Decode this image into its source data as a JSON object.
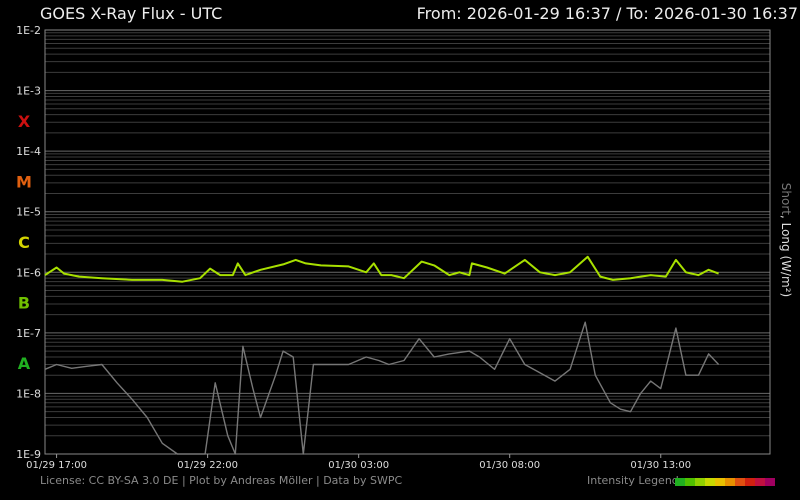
{
  "header": {
    "title": "GOES X-Ray Flux - UTC",
    "range": "From: 2026-01-29 16:37  /  To: 2026-01-30 16:37"
  },
  "footer": {
    "credit": "License: CC BY-SA 3.0 DE | Plot by Andreas Möller | Data by SWPC",
    "legend_label": "Intensity Legend"
  },
  "axis": {
    "ylabel_short": "Short",
    "ylabel_rest": ", Long (W/m²)"
  },
  "colors": {
    "background": "#000000",
    "grid": "#5a5a5a",
    "long_series": "#a8e000",
    "short_series": "#777777",
    "class_X": "#cc1010",
    "class_M": "#e06010",
    "class_C": "#d4d400",
    "class_B": "#70c000",
    "class_A": "#20b020"
  },
  "intensity_legend_colors": [
    "#20b020",
    "#50c000",
    "#90d000",
    "#c8d800",
    "#e8c000",
    "#e89000",
    "#e05010",
    "#d02010",
    "#c01040",
    "#a00060"
  ],
  "chart_data": {
    "type": "line",
    "title": "GOES X-Ray Flux - UTC",
    "ylabel": "Short, Long (W/m²)",
    "y_scale": "log",
    "ylim": [
      "1E-9",
      "1E-2"
    ],
    "y_ticks": [
      "1E-2",
      "1E-3",
      "1E-4",
      "1E-5",
      "1E-6",
      "1E-7",
      "1E-8",
      "1E-9"
    ],
    "flare_classes": [
      "X",
      "M",
      "C",
      "B",
      "A"
    ],
    "x_range": [
      "2026-01-29 16:37",
      "2026-01-30 16:37"
    ],
    "x_ticks": [
      "01/29 17:00",
      "01/29 22:00",
      "01/30 03:00",
      "01/30 08:00",
      "01/30 13:00"
    ],
    "grid": true,
    "series": [
      {
        "name": "Long",
        "color": "#a8e000",
        "x": [
          "2026-01-29 16:37",
          "2026-01-29 17:00",
          "2026-01-29 17:15",
          "2026-01-29 17:45",
          "2026-01-29 18:30",
          "2026-01-29 19:30",
          "2026-01-29 20:30",
          "2026-01-29 21:10",
          "2026-01-29 21:45",
          "2026-01-29 22:05",
          "2026-01-29 22:25",
          "2026-01-29 22:50",
          "2026-01-29 23:00",
          "2026-01-29 23:15",
          "2026-01-29 23:45",
          "2026-01-30 00:30",
          "2026-01-30 00:55",
          "2026-01-30 01:15",
          "2026-01-30 01:45",
          "2026-01-30 02:40",
          "2026-01-30 03:15",
          "2026-01-30 03:30",
          "2026-01-30 03:45",
          "2026-01-30 04:05",
          "2026-01-30 04:30",
          "2026-01-30 05:05",
          "2026-01-30 05:30",
          "2026-01-30 06:00",
          "2026-01-30 06:20",
          "2026-01-30 06:40",
          "2026-01-30 06:45",
          "2026-01-30 07:15",
          "2026-01-30 07:50",
          "2026-01-30 08:30",
          "2026-01-30 09:00",
          "2026-01-30 09:30",
          "2026-01-30 10:00",
          "2026-01-30 10:35",
          "2026-01-30 11:00",
          "2026-01-30 11:25",
          "2026-01-30 12:00",
          "2026-01-30 12:40",
          "2026-01-30 13:10",
          "2026-01-30 13:30",
          "2026-01-30 13:50",
          "2026-01-30 14:15",
          "2026-01-30 14:35",
          "2026-01-30 14:55"
        ],
        "y": [
          "9.0E-7",
          "1.2E-6",
          "9.5E-7",
          "8.5E-7",
          "8.0E-7",
          "7.5E-7",
          "7.5E-7",
          "7.0E-7",
          "8.0E-7",
          "1.15E-6",
          "9.0E-7",
          "9.0E-7",
          "1.4E-6",
          "9.0E-7",
          "1.1E-6",
          "1.35E-6",
          "1.6E-6",
          "1.4E-6",
          "1.3E-6",
          "1.25E-6",
          "1.0E-6",
          "1.4E-6",
          "9.0E-7",
          "9.0E-7",
          "8.0E-7",
          "1.5E-6",
          "1.3E-6",
          "9.0E-7",
          "1.0E-6",
          "9.0E-7",
          "1.4E-6",
          "1.2E-6",
          "9.5E-7",
          "1.6E-6",
          "1.0E-6",
          "9.0E-7",
          "1.0E-6",
          "1.8E-6",
          "8.5E-7",
          "7.5E-7",
          "8.0E-7",
          "9.0E-7",
          "8.5E-7",
          "1.6E-6",
          "1.0E-6",
          "9.0E-7",
          "1.1E-6",
          "9.5E-7"
        ]
      },
      {
        "name": "Short",
        "color": "#777777",
        "x": [
          "2026-01-29 16:37",
          "2026-01-29 17:00",
          "2026-01-29 17:30",
          "2026-01-29 18:00",
          "2026-01-29 18:30",
          "2026-01-29 19:00",
          "2026-01-29 19:30",
          "2026-01-29 20:00",
          "2026-01-29 20:30",
          "2026-01-29 21:00",
          "2026-01-29 21:30",
          "2026-01-29 21:55",
          "2026-01-29 22:15",
          "2026-01-29 22:40",
          "2026-01-29 22:55",
          "2026-01-29 23:10",
          "2026-01-29 23:30",
          "2026-01-29 23:45",
          "2026-01-30 00:15",
          "2026-01-30 00:30",
          "2026-01-30 00:50",
          "2026-01-30 01:10",
          "2026-01-30 01:30",
          "2026-01-30 02:00",
          "2026-01-30 02:40",
          "2026-01-30 03:15",
          "2026-01-30 03:40",
          "2026-01-30 04:00",
          "2026-01-30 04:30",
          "2026-01-30 05:00",
          "2026-01-30 05:30",
          "2026-01-30 06:00",
          "2026-01-30 06:40",
          "2026-01-30 07:00",
          "2026-01-30 07:30",
          "2026-01-30 08:00",
          "2026-01-30 08:30",
          "2026-01-30 09:00",
          "2026-01-30 09:30",
          "2026-01-30 10:00",
          "2026-01-30 10:30",
          "2026-01-30 10:50",
          "2026-01-30 11:20",
          "2026-01-30 11:40",
          "2026-01-30 12:00",
          "2026-01-30 12:20",
          "2026-01-30 12:40",
          "2026-01-30 13:00",
          "2026-01-30 13:30",
          "2026-01-30 13:50",
          "2026-01-30 14:15",
          "2026-01-30 14:35",
          "2026-01-30 14:55"
        ],
        "y": [
          "2.5E-8",
          "3.0E-8",
          "2.6E-8",
          "2.8E-8",
          "3.0E-8",
          "1.5E-8",
          "8.0E-9",
          "4.0E-9",
          "1.5E-9",
          "1.0E-9",
          "1.0E-9",
          "1.0E-9",
          "1.5E-8",
          "2.0E-9",
          "1.0E-9",
          "6.0E-8",
          "1.2E-8",
          "4.0E-9",
          "2.0E-8",
          "5.0E-8",
          "4.0E-8",
          "1.0E-9",
          "3.0E-8",
          "3.0E-8",
          "3.0E-8",
          "4.0E-8",
          "3.5E-8",
          "3.0E-8",
          "3.5E-8",
          "8.0E-8",
          "4.0E-8",
          "4.5E-8",
          "5.0E-8",
          "4.0E-8",
          "2.5E-8",
          "8.0E-8",
          "3.0E-8",
          "2.2E-8",
          "1.6E-8",
          "2.5E-8",
          "1.5E-7",
          "2.0E-8",
          "7.0E-9",
          "5.5E-9",
          "5.0E-9",
          "1.0E-8",
          "1.6E-8",
          "1.2E-8",
          "1.2E-7",
          "2.0E-8",
          "2.0E-8",
          "4.5E-8",
          "3.0E-8"
        ]
      }
    ]
  }
}
